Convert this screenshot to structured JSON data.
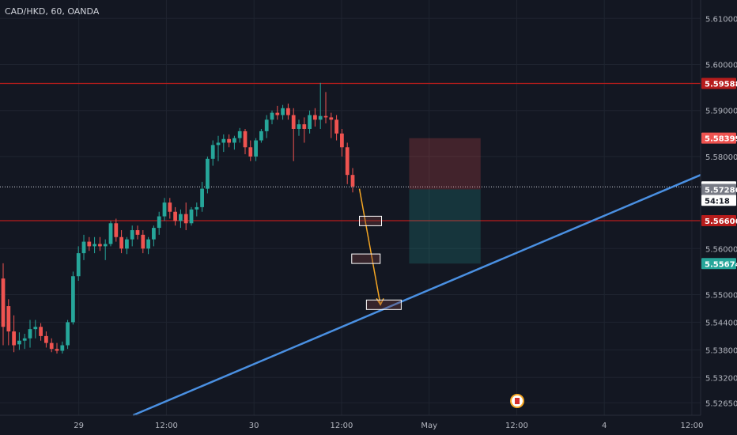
{
  "header": {
    "symbol": "CAD/HKD, 60, OANDA"
  },
  "colors": {
    "background": "#131722",
    "bull": "#26a69a",
    "bear": "#ef5350",
    "level_line": "#b71c1c",
    "trendline": "#4a90e2",
    "arrow": "#f5a623",
    "grid": "#1f2430"
  },
  "chart_data": {
    "type": "candlestick",
    "ylim": [
      5.5238,
      5.614
    ],
    "y_ticks": [
      "5.61000",
      "5.60000",
      "5.59000",
      "5.58000",
      "5.56000",
      "5.55000",
      "5.54400",
      "5.53800",
      "5.53200",
      "5.52650"
    ],
    "x_ticks": [
      "29",
      "12:00",
      "30",
      "12:00",
      "May",
      "12:00",
      "4",
      "12:00"
    ],
    "candles": [
      [
        5.5535,
        5.5568,
        5.539,
        5.543
      ],
      [
        5.5475,
        5.549,
        5.539,
        5.542
      ],
      [
        5.542,
        5.5455,
        5.5375,
        5.539
      ],
      [
        5.5392,
        5.5418,
        5.538,
        5.54
      ],
      [
        5.54,
        5.5415,
        5.5382,
        5.5405
      ],
      [
        5.5405,
        5.5445,
        5.5385,
        5.5425
      ],
      [
        5.5425,
        5.5445,
        5.5405,
        5.543
      ],
      [
        5.543,
        5.5438,
        5.54,
        5.541
      ],
      [
        5.541,
        5.542,
        5.5385,
        5.5395
      ],
      [
        5.5395,
        5.5405,
        5.5375,
        5.5382
      ],
      [
        5.5382,
        5.5395,
        5.5372,
        5.5378
      ],
      [
        5.5378,
        5.5398,
        5.5372,
        5.539
      ],
      [
        5.539,
        5.5445,
        5.5382,
        5.544
      ],
      [
        5.544,
        5.555,
        5.5435,
        5.554
      ],
      [
        5.554,
        5.5605,
        5.553,
        5.559
      ],
      [
        5.559,
        5.563,
        5.5575,
        5.5615
      ],
      [
        5.5615,
        5.5625,
        5.5595,
        5.5605
      ],
      [
        5.5605,
        5.5625,
        5.559,
        5.561
      ],
      [
        5.561,
        5.5625,
        5.5595,
        5.5605
      ],
      [
        5.5605,
        5.562,
        5.5575,
        5.561
      ],
      [
        5.561,
        5.566,
        5.5605,
        5.5655
      ],
      [
        5.5655,
        5.5665,
        5.5615,
        5.5625
      ],
      [
        5.5625,
        5.564,
        5.559,
        5.56
      ],
      [
        5.56,
        5.5625,
        5.5588,
        5.562
      ],
      [
        5.562,
        5.565,
        5.5605,
        5.564
      ],
      [
        5.564,
        5.565,
        5.562,
        5.563
      ],
      [
        5.563,
        5.564,
        5.559,
        5.56
      ],
      [
        5.56,
        5.5625,
        5.5588,
        5.562
      ],
      [
        5.562,
        5.565,
        5.5605,
        5.5645
      ],
      [
        5.5645,
        5.568,
        5.563,
        5.567
      ],
      [
        5.567,
        5.571,
        5.566,
        5.57
      ],
      [
        5.57,
        5.571,
        5.5665,
        5.568
      ],
      [
        5.568,
        5.569,
        5.565,
        5.566
      ],
      [
        5.566,
        5.5685,
        5.5645,
        5.5675
      ],
      [
        5.5675,
        5.57,
        5.564,
        5.5655
      ],
      [
        5.5655,
        5.569,
        5.565,
        5.5685
      ],
      [
        5.5685,
        5.57,
        5.567,
        5.569
      ],
      [
        5.569,
        5.5745,
        5.568,
        5.573
      ],
      [
        5.573,
        5.58,
        5.572,
        5.5795
      ],
      [
        5.5795,
        5.5835,
        5.578,
        5.5825
      ],
      [
        5.5825,
        5.5845,
        5.579,
        5.583
      ],
      [
        5.583,
        5.5848,
        5.581,
        5.5838
      ],
      [
        5.5838,
        5.5848,
        5.582,
        5.583
      ],
      [
        5.583,
        5.5845,
        5.5815,
        5.584
      ],
      [
        5.584,
        5.5862,
        5.583,
        5.5855
      ],
      [
        5.5855,
        5.586,
        5.5805,
        5.582
      ],
      [
        5.582,
        5.5835,
        5.579,
        5.58
      ],
      [
        5.58,
        5.584,
        5.579,
        5.5835
      ],
      [
        5.5835,
        5.586,
        5.583,
        5.5855
      ],
      [
        5.5855,
        5.589,
        5.584,
        5.588
      ],
      [
        5.588,
        5.59,
        5.587,
        5.5895
      ],
      [
        5.5895,
        5.591,
        5.588,
        5.589
      ],
      [
        5.589,
        5.5912,
        5.588,
        5.5905
      ],
      [
        5.5905,
        5.5915,
        5.588,
        5.589
      ],
      [
        5.589,
        5.5905,
        5.579,
        5.586
      ],
      [
        5.586,
        5.588,
        5.5845,
        5.587
      ],
      [
        5.587,
        5.5885,
        5.583,
        5.586
      ],
      [
        5.586,
        5.59,
        5.585,
        5.589
      ],
      [
        5.589,
        5.5905,
        5.5865,
        5.588
      ],
      [
        5.588,
        5.596,
        5.586,
        5.5888
      ],
      [
        5.5888,
        5.594,
        5.5872,
        5.5885
      ],
      [
        5.5885,
        5.5895,
        5.584,
        5.588
      ],
      [
        5.588,
        5.589,
        5.5835,
        5.585
      ],
      [
        5.585,
        5.586,
        5.58,
        5.582
      ],
      [
        5.582,
        5.583,
        5.574,
        5.576
      ],
      [
        5.576,
        5.5775,
        5.5722,
        5.5735
      ]
    ],
    "horizontal_levels": [
      5.59588,
      5.56606
    ],
    "last_price": 5.5734,
    "trendline": {
      "x_percent": [
        0,
        100
      ],
      "y": [
        5.5238,
        5.576
      ]
    },
    "arrow": {
      "from": 5.573,
      "to": 5.5478
    },
    "target_boxes": [
      5.566,
      5.5578,
      5.5478
    ],
    "position": {
      "stop": 5.58399,
      "entry": 5.57286,
      "target": 5.55674
    },
    "price_labels": [
      {
        "text": "5.59588",
        "bg": "#b71c1c",
        "fg": "#ffffff"
      },
      {
        "text": "5.58399",
        "bg": "#ef5350",
        "fg": "#ffffff"
      },
      {
        "text": "5.57340",
        "bg": "#ffffff",
        "fg": "#131722"
      },
      {
        "text": "54:18",
        "bg": "#ffffff",
        "fg": "#131722"
      },
      {
        "text": "5.57286",
        "bg": "#787b86",
        "fg": "#ffffff"
      },
      {
        "text": "5.56606",
        "bg": "#b71c1c",
        "fg": "#ffffff"
      },
      {
        "text": "5.55674",
        "bg": "#26a69a",
        "fg": "#ffffff"
      }
    ],
    "event_marker": "canada-flag-icon"
  }
}
